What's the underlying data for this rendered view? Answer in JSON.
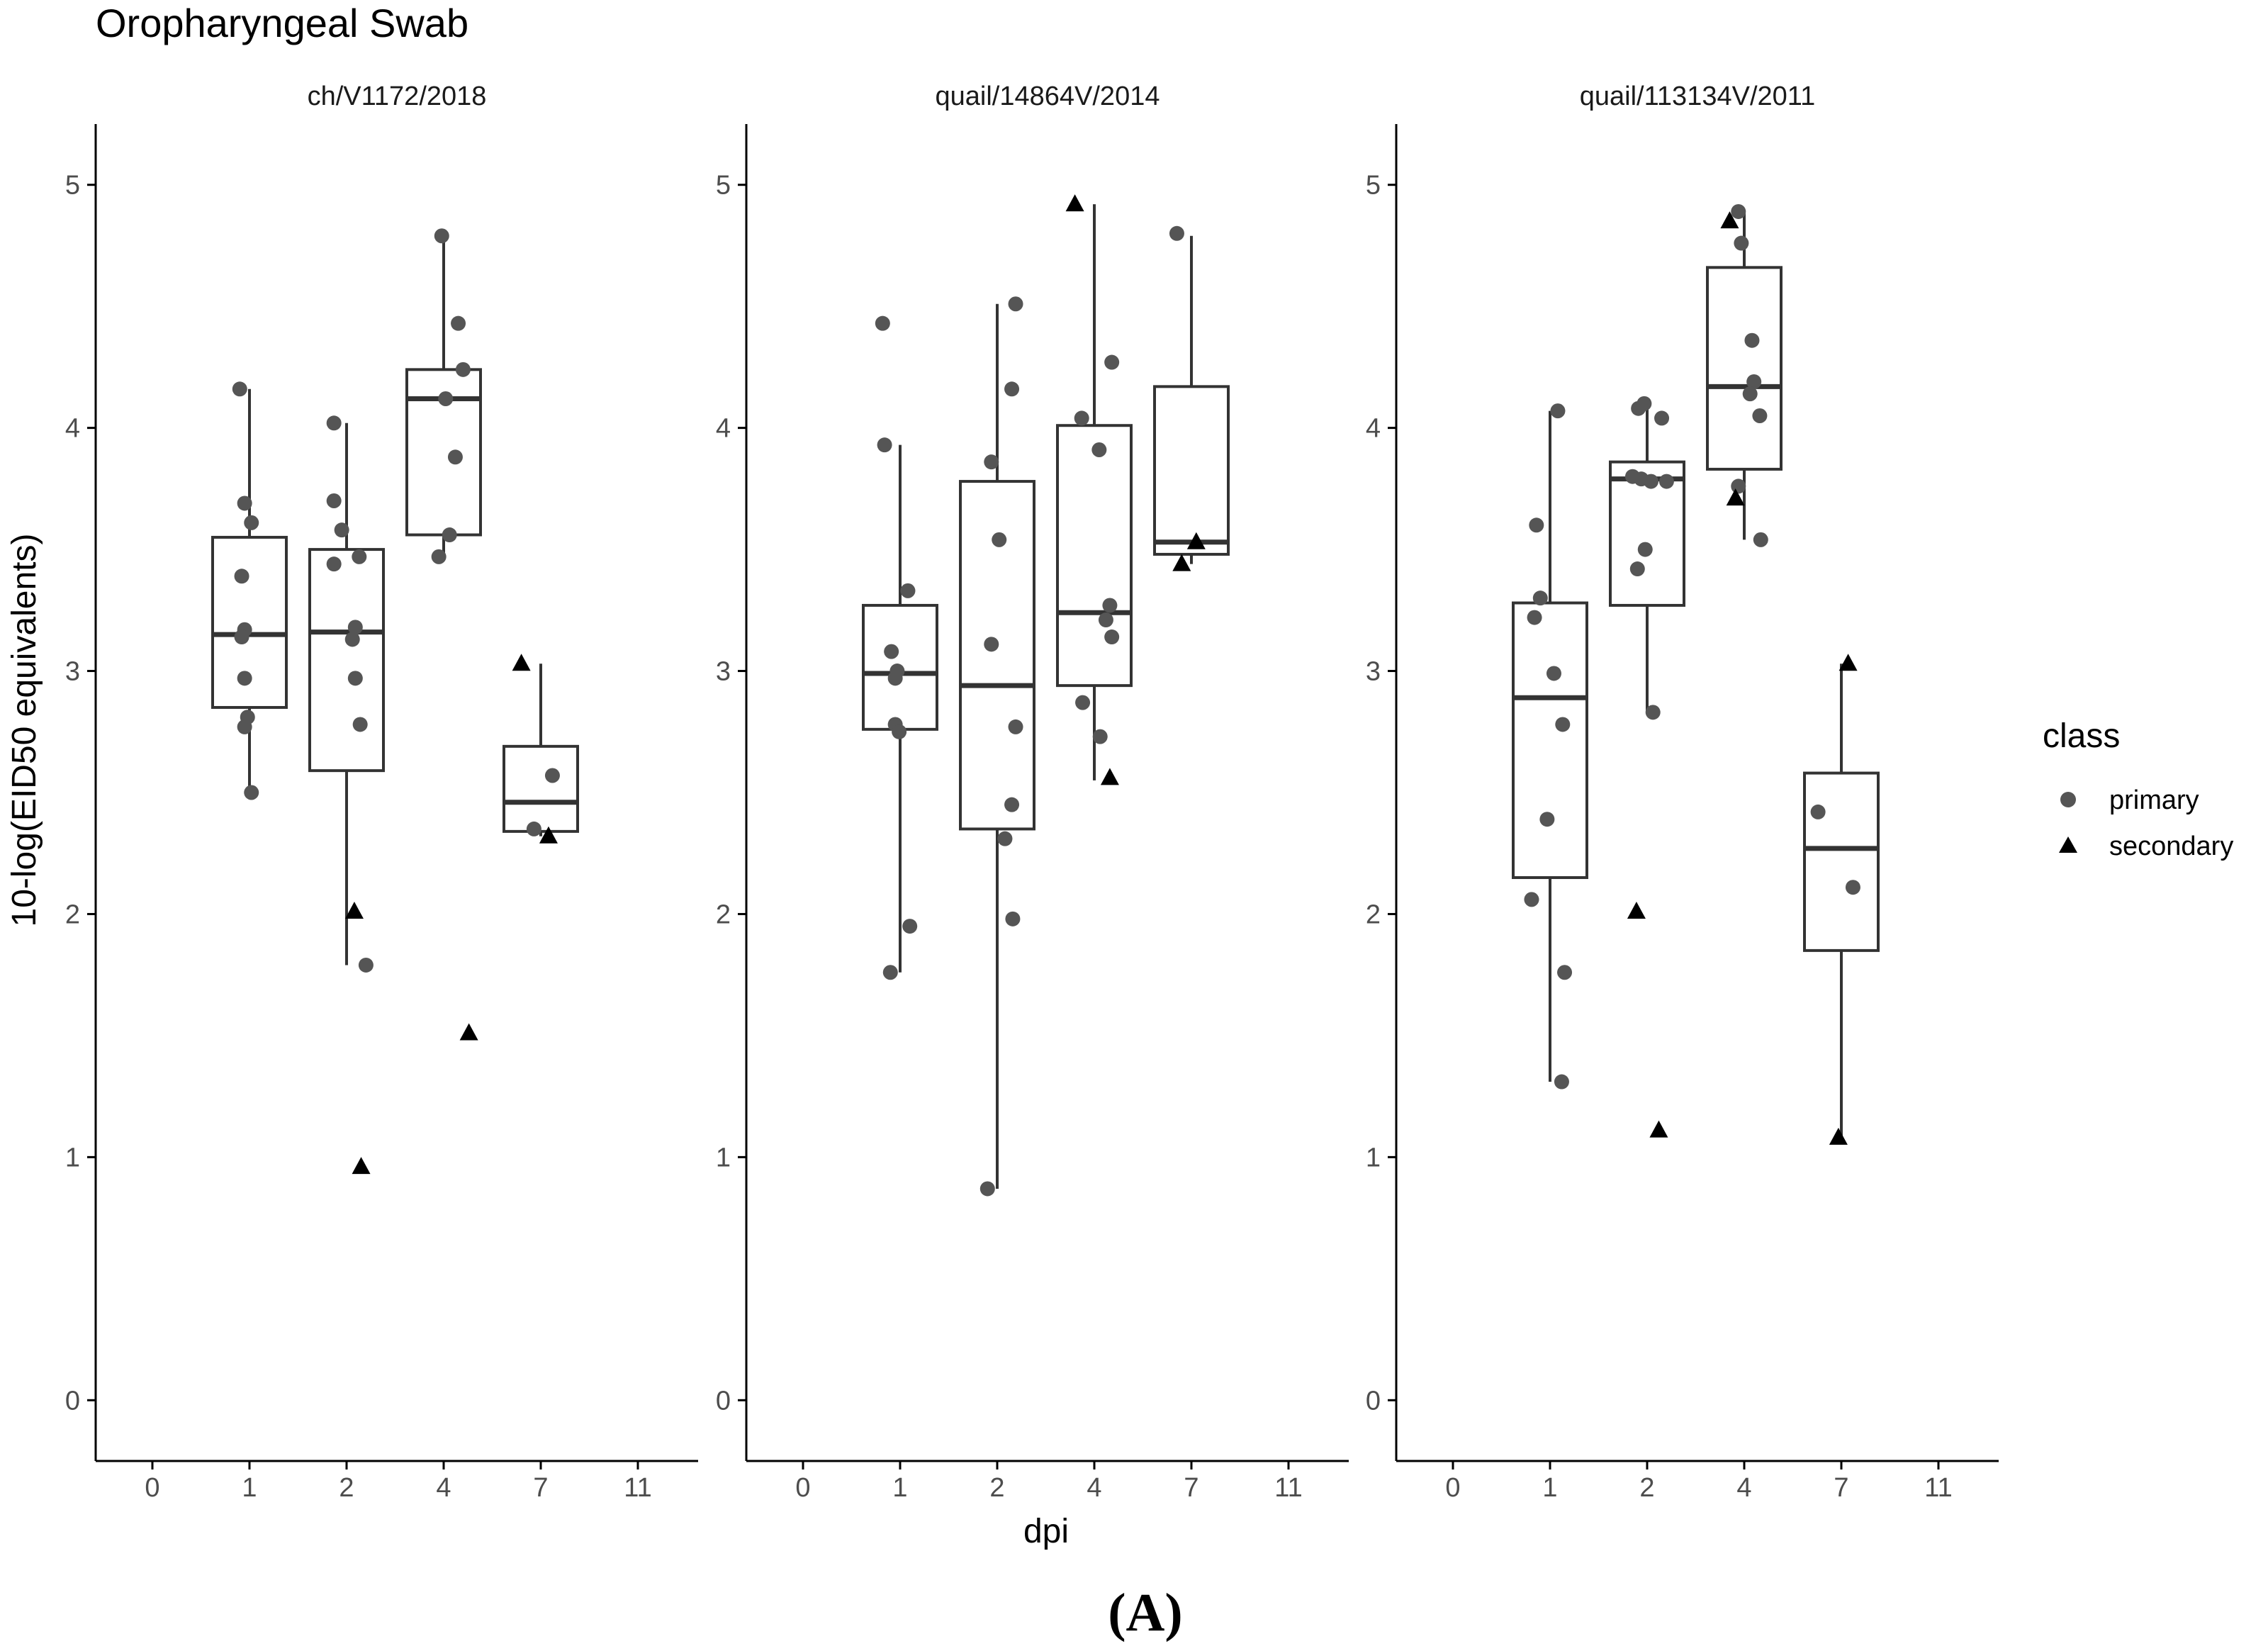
{
  "figure_label": "(A)",
  "chart_data": {
    "type": "boxplot-facets",
    "title": "Oropharyngeal Swab",
    "xlabel": "dpi",
    "ylabel": "10-log(EID50 equivalents)",
    "x_categories": [
      "0",
      "1",
      "2",
      "4",
      "7",
      "11"
    ],
    "y_ticks": [
      "0",
      "1",
      "2",
      "3",
      "4",
      "5"
    ],
    "ylim": [
      -0.25,
      5.25
    ],
    "legend": {
      "title": "class",
      "position": "right",
      "entries": [
        {
          "label": "primary",
          "shape": "circle",
          "color": "#555555"
        },
        {
          "label": "secondary",
          "shape": "triangle",
          "color": "#000000"
        }
      ]
    },
    "colors": {
      "axis": "#000000",
      "box": "#333333",
      "primary": "#555555",
      "secondary": "#000000",
      "tick_text": "#4d4d4d"
    },
    "panels": [
      {
        "title": "ch/V1172/2018",
        "boxes": [
          {
            "category": "1",
            "min": 2.5,
            "q1": 2.85,
            "median": 3.15,
            "q3": 3.55,
            "max": 4.16
          },
          {
            "category": "2",
            "min": 1.79,
            "q1": 2.59,
            "median": 3.16,
            "q3": 3.5,
            "max": 4.02
          },
          {
            "category": "4",
            "min": 3.47,
            "q1": 3.56,
            "median": 4.12,
            "q3": 4.24,
            "max": 4.79
          },
          {
            "category": "7",
            "min": 2.32,
            "q1": 2.34,
            "median": 2.46,
            "q3": 2.69,
            "max": 3.03
          }
        ],
        "points": [
          {
            "category": "1",
            "offset": -0.1,
            "value": 4.16,
            "class": "primary"
          },
          {
            "category": "1",
            "offset": -0.05,
            "value": 3.69,
            "class": "primary"
          },
          {
            "category": "1",
            "offset": 0.02,
            "value": 3.61,
            "class": "primary"
          },
          {
            "category": "1",
            "offset": -0.08,
            "value": 3.39,
            "class": "primary"
          },
          {
            "category": "1",
            "offset": -0.05,
            "value": 3.17,
            "class": "primary"
          },
          {
            "category": "1",
            "offset": -0.08,
            "value": 3.14,
            "class": "primary"
          },
          {
            "category": "1",
            "offset": -0.05,
            "value": 2.97,
            "class": "primary"
          },
          {
            "category": "1",
            "offset": -0.02,
            "value": 2.81,
            "class": "primary"
          },
          {
            "category": "1",
            "offset": -0.05,
            "value": 2.77,
            "class": "primary"
          },
          {
            "category": "1",
            "offset": 0.02,
            "value": 2.5,
            "class": "primary"
          },
          {
            "category": "2",
            "offset": -0.13,
            "value": 4.02,
            "class": "primary"
          },
          {
            "category": "2",
            "offset": -0.13,
            "value": 3.7,
            "class": "primary"
          },
          {
            "category": "2",
            "offset": -0.05,
            "value": 3.58,
            "class": "primary"
          },
          {
            "category": "2",
            "offset": 0.13,
            "value": 3.47,
            "class": "primary"
          },
          {
            "category": "2",
            "offset": -0.13,
            "value": 3.44,
            "class": "primary"
          },
          {
            "category": "2",
            "offset": 0.09,
            "value": 3.18,
            "class": "primary"
          },
          {
            "category": "2",
            "offset": 0.06,
            "value": 3.13,
            "class": "primary"
          },
          {
            "category": "2",
            "offset": 0.09,
            "value": 2.97,
            "class": "primary"
          },
          {
            "category": "2",
            "offset": 0.14,
            "value": 2.78,
            "class": "primary"
          },
          {
            "category": "2",
            "offset": 0.08,
            "value": 2.01,
            "class": "secondary"
          },
          {
            "category": "2",
            "offset": 0.2,
            "value": 1.79,
            "class": "primary"
          },
          {
            "category": "2",
            "offset": 0.15,
            "value": 0.96,
            "class": "secondary"
          },
          {
            "category": "4",
            "offset": -0.02,
            "value": 4.79,
            "class": "primary"
          },
          {
            "category": "4",
            "offset": 0.15,
            "value": 4.43,
            "class": "primary"
          },
          {
            "category": "4",
            "offset": 0.2,
            "value": 4.24,
            "class": "primary"
          },
          {
            "category": "4",
            "offset": 0.02,
            "value": 4.12,
            "class": "primary"
          },
          {
            "category": "4",
            "offset": 0.12,
            "value": 3.88,
            "class": "primary"
          },
          {
            "category": "4",
            "offset": 0.06,
            "value": 3.56,
            "class": "primary"
          },
          {
            "category": "4",
            "offset": -0.05,
            "value": 3.47,
            "class": "primary"
          },
          {
            "category": "4",
            "offset": 0.26,
            "value": 1.51,
            "class": "secondary"
          },
          {
            "category": "7",
            "offset": -0.2,
            "value": 3.03,
            "class": "secondary"
          },
          {
            "category": "7",
            "offset": 0.12,
            "value": 2.57,
            "class": "primary"
          },
          {
            "category": "7",
            "offset": -0.07,
            "value": 2.35,
            "class": "primary"
          },
          {
            "category": "7",
            "offset": 0.08,
            "value": 2.32,
            "class": "secondary"
          }
        ]
      },
      {
        "title": "quail/14864V/2014",
        "boxes": [
          {
            "category": "1",
            "min": 1.76,
            "q1": 2.76,
            "median": 2.99,
            "q3": 3.27,
            "max": 3.93
          },
          {
            "category": "2",
            "min": 0.87,
            "q1": 2.35,
            "median": 2.94,
            "q3": 3.78,
            "max": 4.51
          },
          {
            "category": "4",
            "min": 2.55,
            "q1": 2.94,
            "median": 3.24,
            "q3": 4.01,
            "max": 4.92
          },
          {
            "category": "7",
            "min": 3.44,
            "q1": 3.48,
            "median": 3.53,
            "q3": 4.17,
            "max": 4.79
          }
        ],
        "points": [
          {
            "category": "1",
            "offset": -0.18,
            "value": 4.43,
            "class": "primary"
          },
          {
            "category": "1",
            "offset": -0.16,
            "value": 3.93,
            "class": "primary"
          },
          {
            "category": "1",
            "offset": 0.08,
            "value": 3.33,
            "class": "primary"
          },
          {
            "category": "1",
            "offset": -0.09,
            "value": 3.08,
            "class": "primary"
          },
          {
            "category": "1",
            "offset": -0.03,
            "value": 3.0,
            "class": "primary"
          },
          {
            "category": "1",
            "offset": -0.05,
            "value": 2.97,
            "class": "primary"
          },
          {
            "category": "1",
            "offset": -0.05,
            "value": 2.78,
            "class": "primary"
          },
          {
            "category": "1",
            "offset": -0.01,
            "value": 2.75,
            "class": "primary"
          },
          {
            "category": "1",
            "offset": 0.1,
            "value": 1.95,
            "class": "primary"
          },
          {
            "category": "1",
            "offset": -0.1,
            "value": 1.76,
            "class": "primary"
          },
          {
            "category": "2",
            "offset": 0.19,
            "value": 4.51,
            "class": "primary"
          },
          {
            "category": "2",
            "offset": 0.15,
            "value": 4.16,
            "class": "primary"
          },
          {
            "category": "2",
            "offset": -0.06,
            "value": 3.86,
            "class": "primary"
          },
          {
            "category": "2",
            "offset": 0.02,
            "value": 3.54,
            "class": "primary"
          },
          {
            "category": "2",
            "offset": -0.06,
            "value": 3.11,
            "class": "primary"
          },
          {
            "category": "2",
            "offset": 0.19,
            "value": 2.77,
            "class": "primary"
          },
          {
            "category": "2",
            "offset": 0.15,
            "value": 2.45,
            "class": "primary"
          },
          {
            "category": "2",
            "offset": 0.08,
            "value": 2.31,
            "class": "primary"
          },
          {
            "category": "2",
            "offset": 0.16,
            "value": 1.98,
            "class": "primary"
          },
          {
            "category": "2",
            "offset": -0.1,
            "value": 0.87,
            "class": "primary"
          },
          {
            "category": "4",
            "offset": -0.2,
            "value": 4.92,
            "class": "secondary"
          },
          {
            "category": "4",
            "offset": 0.18,
            "value": 4.27,
            "class": "primary"
          },
          {
            "category": "4",
            "offset": -0.13,
            "value": 4.04,
            "class": "primary"
          },
          {
            "category": "4",
            "offset": 0.05,
            "value": 3.91,
            "class": "primary"
          },
          {
            "category": "4",
            "offset": 0.16,
            "value": 3.27,
            "class": "primary"
          },
          {
            "category": "4",
            "offset": 0.12,
            "value": 3.21,
            "class": "primary"
          },
          {
            "category": "4",
            "offset": 0.18,
            "value": 3.14,
            "class": "primary"
          },
          {
            "category": "4",
            "offset": -0.12,
            "value": 2.87,
            "class": "primary"
          },
          {
            "category": "4",
            "offset": 0.06,
            "value": 2.73,
            "class": "primary"
          },
          {
            "category": "4",
            "offset": 0.16,
            "value": 2.56,
            "class": "secondary"
          },
          {
            "category": "7",
            "offset": -0.15,
            "value": 4.8,
            "class": "primary"
          },
          {
            "category": "7",
            "offset": 0.05,
            "value": 3.53,
            "class": "secondary"
          },
          {
            "category": "7",
            "offset": -0.1,
            "value": 3.44,
            "class": "secondary"
          }
        ]
      },
      {
        "title": "quail/113134V/2011",
        "boxes": [
          {
            "category": "1",
            "min": 1.31,
            "q1": 2.15,
            "median": 2.89,
            "q3": 3.28,
            "max": 4.07
          },
          {
            "category": "2",
            "min": 2.83,
            "q1": 3.27,
            "median": 3.79,
            "q3": 3.86,
            "max": 4.1
          },
          {
            "category": "4",
            "min": 3.54,
            "q1": 3.83,
            "median": 4.17,
            "q3": 4.66,
            "max": 4.89
          },
          {
            "category": "7",
            "min": 1.08,
            "q1": 1.85,
            "median": 2.27,
            "q3": 2.58,
            "max": 3.03
          }
        ],
        "points": [
          {
            "category": "1",
            "offset": 0.08,
            "value": 4.07,
            "class": "primary"
          },
          {
            "category": "1",
            "offset": -0.14,
            "value": 3.6,
            "class": "primary"
          },
          {
            "category": "1",
            "offset": -0.1,
            "value": 3.3,
            "class": "primary"
          },
          {
            "category": "1",
            "offset": -0.16,
            "value": 3.22,
            "class": "primary"
          },
          {
            "category": "1",
            "offset": 0.04,
            "value": 2.99,
            "class": "primary"
          },
          {
            "category": "1",
            "offset": 0.13,
            "value": 2.78,
            "class": "primary"
          },
          {
            "category": "1",
            "offset": -0.03,
            "value": 2.39,
            "class": "primary"
          },
          {
            "category": "1",
            "offset": -0.19,
            "value": 2.06,
            "class": "primary"
          },
          {
            "category": "1",
            "offset": 0.15,
            "value": 1.76,
            "class": "primary"
          },
          {
            "category": "1",
            "offset": 0.12,
            "value": 1.31,
            "class": "primary"
          },
          {
            "category": "2",
            "offset": -0.09,
            "value": 4.08,
            "class": "primary"
          },
          {
            "category": "2",
            "offset": -0.03,
            "value": 4.1,
            "class": "primary"
          },
          {
            "category": "2",
            "offset": 0.15,
            "value": 4.04,
            "class": "primary"
          },
          {
            "category": "2",
            "offset": -0.15,
            "value": 3.8,
            "class": "primary"
          },
          {
            "category": "2",
            "offset": -0.06,
            "value": 3.79,
            "class": "primary"
          },
          {
            "category": "2",
            "offset": 0.04,
            "value": 3.78,
            "class": "primary"
          },
          {
            "category": "2",
            "offset": 0.2,
            "value": 3.78,
            "class": "primary"
          },
          {
            "category": "2",
            "offset": -0.02,
            "value": 3.5,
            "class": "primary"
          },
          {
            "category": "2",
            "offset": -0.1,
            "value": 3.42,
            "class": "primary"
          },
          {
            "category": "2",
            "offset": 0.06,
            "value": 2.83,
            "class": "primary"
          },
          {
            "category": "2",
            "offset": -0.11,
            "value": 2.01,
            "class": "secondary"
          },
          {
            "category": "2",
            "offset": 0.12,
            "value": 1.11,
            "class": "secondary"
          },
          {
            "category": "4",
            "offset": -0.15,
            "value": 4.85,
            "class": "secondary"
          },
          {
            "category": "4",
            "offset": -0.06,
            "value": 4.89,
            "class": "primary"
          },
          {
            "category": "4",
            "offset": -0.03,
            "value": 4.76,
            "class": "primary"
          },
          {
            "category": "4",
            "offset": 0.08,
            "value": 4.36,
            "class": "primary"
          },
          {
            "category": "4",
            "offset": 0.1,
            "value": 4.19,
            "class": "primary"
          },
          {
            "category": "4",
            "offset": 0.06,
            "value": 4.14,
            "class": "primary"
          },
          {
            "category": "4",
            "offset": 0.16,
            "value": 4.05,
            "class": "primary"
          },
          {
            "category": "4",
            "offset": -0.06,
            "value": 3.76,
            "class": "primary"
          },
          {
            "category": "4",
            "offset": -0.09,
            "value": 3.71,
            "class": "secondary"
          },
          {
            "category": "4",
            "offset": 0.17,
            "value": 3.54,
            "class": "primary"
          },
          {
            "category": "7",
            "offset": 0.07,
            "value": 3.03,
            "class": "secondary"
          },
          {
            "category": "7",
            "offset": -0.24,
            "value": 2.42,
            "class": "primary"
          },
          {
            "category": "7",
            "offset": 0.12,
            "value": 2.11,
            "class": "primary"
          },
          {
            "category": "7",
            "offset": -0.03,
            "value": 1.08,
            "class": "secondary"
          }
        ]
      }
    ]
  }
}
